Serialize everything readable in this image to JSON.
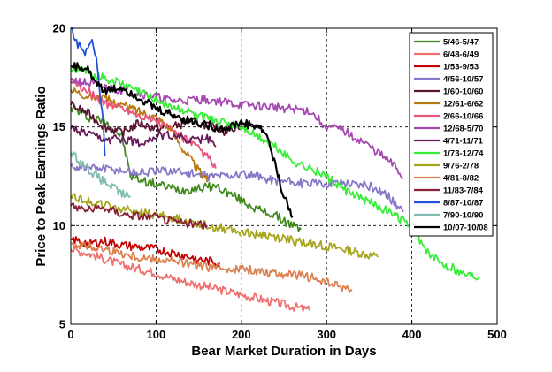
{
  "chart_data": {
    "type": "line",
    "title": "",
    "xlabel": "Bear Market Duration in Days",
    "ylabel": "Price to Peak Earnings Ratio",
    "xlim": [
      0,
      500
    ],
    "ylim": [
      5,
      20
    ],
    "xticks": [
      0,
      100,
      200,
      300,
      400,
      500
    ],
    "yticks": [
      5,
      10,
      15,
      20
    ],
    "grid": true,
    "grid_style": "dashed",
    "legend_position": "top-right",
    "series": [
      {
        "name": "5/46-5/47",
        "color": "#3f8a1f",
        "x": [
          0,
          20,
          40,
          60,
          70,
          90,
          110,
          130,
          150,
          170,
          200,
          220,
          240,
          260,
          270
        ],
        "y": [
          16.0,
          15.5,
          15.3,
          14.5,
          12.5,
          12.2,
          12.0,
          11.8,
          11.9,
          12.0,
          11.3,
          10.8,
          10.5,
          10.0,
          9.8
        ]
      },
      {
        "name": "6/48-6/49",
        "color": "#f07070",
        "x": [
          0,
          20,
          40,
          60,
          80,
          100,
          120,
          140,
          160,
          180,
          200,
          220,
          240,
          260,
          280
        ],
        "y": [
          8.8,
          8.6,
          8.3,
          8.0,
          7.8,
          7.6,
          7.3,
          7.1,
          6.9,
          6.7,
          6.5,
          6.3,
          6.1,
          5.9,
          5.7
        ]
      },
      {
        "name": "1/53-9/53",
        "color": "#c40000",
        "x": [
          0,
          20,
          40,
          60,
          80,
          100,
          120,
          140,
          160,
          175
        ],
        "y": [
          9.3,
          9.1,
          9.2,
          9.0,
          8.9,
          8.8,
          8.6,
          8.4,
          8.2,
          8.1
        ]
      },
      {
        "name": "4/56-10/57",
        "color": "#8877c8",
        "x": [
          0,
          40,
          80,
          120,
          160,
          200,
          240,
          280,
          320,
          350,
          370,
          390
        ],
        "y": [
          13.0,
          12.9,
          12.7,
          12.8,
          12.5,
          12.6,
          12.3,
          12.1,
          12.2,
          12.0,
          11.6,
          10.7
        ]
      },
      {
        "name": "1/60-10/60",
        "color": "#5a1232",
        "x": [
          0,
          20,
          40,
          60,
          80,
          100,
          120,
          140,
          160,
          180,
          200
        ],
        "y": [
          16.1,
          15.7,
          15.0,
          14.7,
          15.2,
          14.9,
          15.0,
          15.3,
          15.1,
          14.8,
          15.1
        ]
      },
      {
        "name": "12/61-6/62",
        "color": "#b87a10",
        "x": [
          0,
          20,
          40,
          60,
          80,
          100,
          110,
          120,
          130,
          140,
          150,
          160
        ],
        "y": [
          16.9,
          16.6,
          16.4,
          16.1,
          15.8,
          15.5,
          15.2,
          14.7,
          14.0,
          13.4,
          12.8,
          12.2
        ]
      },
      {
        "name": "2/66-10/66",
        "color": "#e8557a",
        "x": [
          0,
          20,
          40,
          60,
          80,
          100,
          120,
          140,
          160,
          170
        ],
        "y": [
          17.3,
          16.8,
          16.2,
          16.0,
          15.6,
          15.3,
          14.8,
          14.2,
          13.5,
          12.9
        ]
      },
      {
        "name": "12/68-5/70",
        "color": "#a648b0",
        "x": [
          0,
          40,
          80,
          120,
          160,
          200,
          240,
          280,
          300,
          320,
          340,
          360,
          380,
          390
        ],
        "y": [
          17.4,
          17.0,
          16.7,
          16.3,
          16.4,
          16.1,
          16.0,
          15.8,
          15.0,
          14.8,
          14.3,
          13.7,
          13.0,
          12.4
        ]
      },
      {
        "name": "4/71-11/71",
        "color": "#661a5a",
        "x": [
          0,
          20,
          40,
          60,
          80,
          100,
          120,
          140,
          160,
          170
        ],
        "y": [
          14.9,
          14.6,
          14.3,
          14.4,
          14.2,
          14.5,
          14.6,
          14.3,
          14.4,
          14.0
        ]
      },
      {
        "name": "1/73-12/74",
        "color": "#36ee36",
        "x": [
          0,
          40,
          80,
          120,
          160,
          200,
          220,
          240,
          260,
          280,
          300,
          320,
          340,
          360,
          380,
          400,
          420,
          440,
          460,
          480
        ],
        "y": [
          18.0,
          17.5,
          16.8,
          16.0,
          15.4,
          15.0,
          14.5,
          14.0,
          13.3,
          12.9,
          12.5,
          11.8,
          11.4,
          11.0,
          10.5,
          10.0,
          8.5,
          8.0,
          7.6,
          7.4
        ]
      },
      {
        "name": "9/76-2/78",
        "color": "#a6a61e",
        "x": [
          0,
          40,
          80,
          120,
          160,
          200,
          240,
          280,
          320,
          360
        ],
        "y": [
          11.5,
          11.0,
          10.7,
          10.4,
          10.0,
          9.7,
          9.4,
          9.1,
          8.8,
          8.4
        ]
      },
      {
        "name": "4/81-8/82",
        "color": "#dd8050",
        "x": [
          0,
          40,
          80,
          120,
          160,
          200,
          240,
          280,
          300,
          330
        ],
        "y": [
          9.1,
          8.8,
          8.4,
          8.2,
          7.9,
          7.8,
          7.6,
          7.4,
          7.1,
          6.7
        ]
      },
      {
        "name": "11/83-7/84",
        "color": "#8a2035",
        "x": [
          0,
          20,
          40,
          60,
          80,
          100,
          120,
          140,
          160
        ],
        "y": [
          11.0,
          10.8,
          10.9,
          10.6,
          10.5,
          10.4,
          10.2,
          10.1,
          10.0
        ]
      },
      {
        "name": "8/87-10/87",
        "color": "#2050d8",
        "x": [
          0,
          5,
          10,
          15,
          20,
          25,
          30,
          35,
          38,
          40
        ],
        "y": [
          20.0,
          19.4,
          19.1,
          18.7,
          19.0,
          19.5,
          18.4,
          16.3,
          15.5,
          13.5
        ]
      },
      {
        "name": "7/90-10/90",
        "color": "#80bcb0",
        "x": [
          0,
          10,
          20,
          30,
          40,
          50,
          60,
          70
        ],
        "y": [
          13.7,
          13.3,
          12.9,
          12.5,
          12.2,
          11.9,
          11.6,
          11.5
        ]
      },
      {
        "name": "10/07-10/08",
        "color": "#000000",
        "x": [
          0,
          20,
          40,
          60,
          80,
          100,
          120,
          140,
          160,
          180,
          200,
          220,
          230,
          240,
          250,
          260
        ],
        "y": [
          18.1,
          17.9,
          16.8,
          17.0,
          16.5,
          15.9,
          15.6,
          15.3,
          15.1,
          14.9,
          15.2,
          15.0,
          14.6,
          13.0,
          11.5,
          10.4
        ]
      }
    ]
  }
}
